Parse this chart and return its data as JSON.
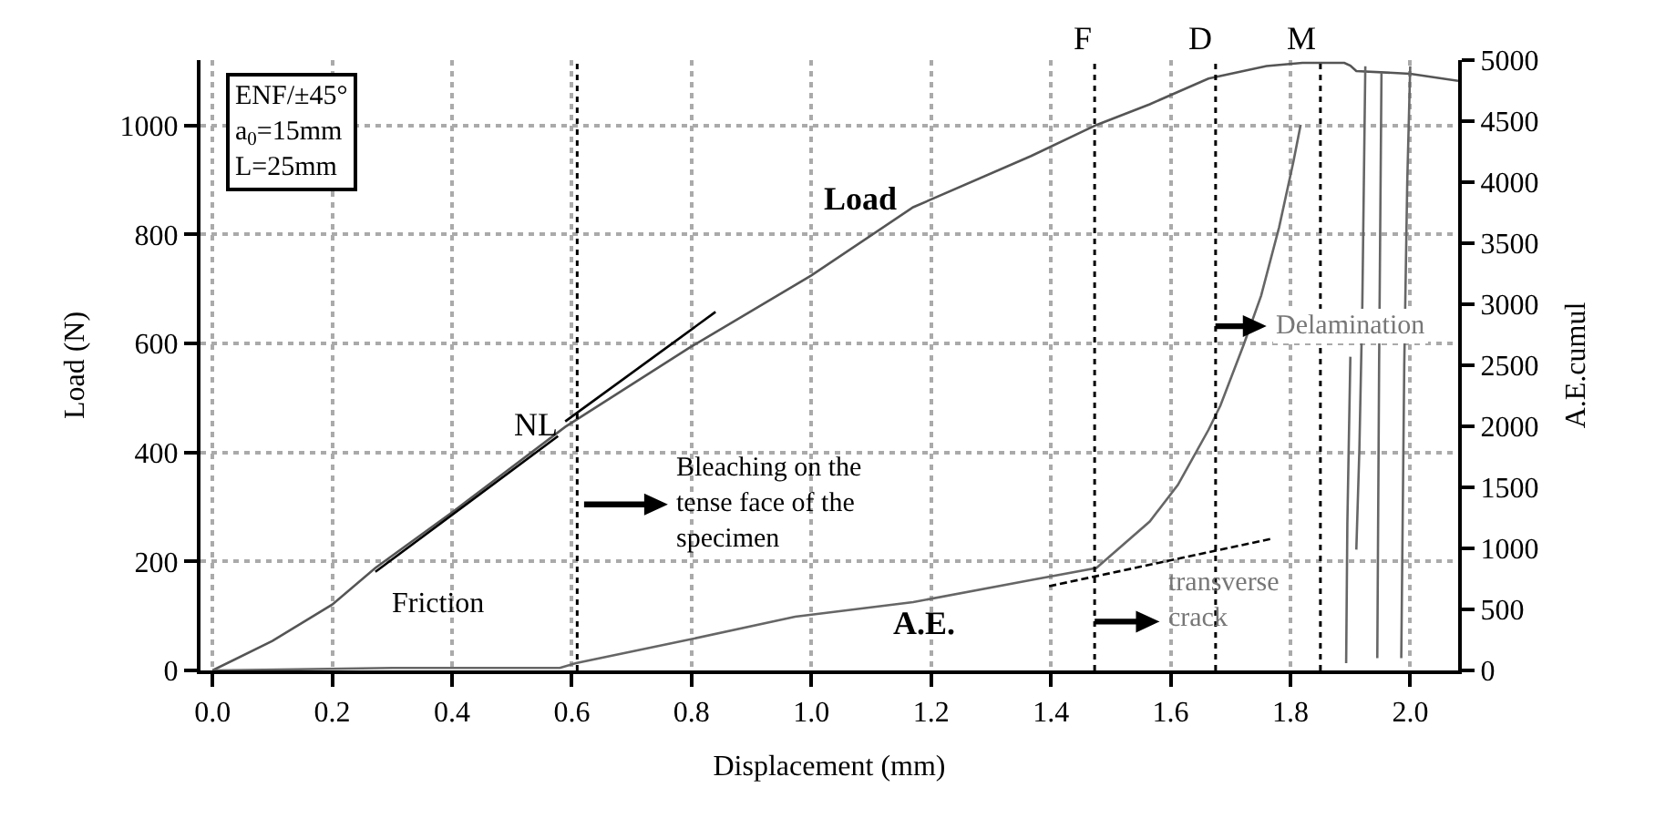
{
  "chart_data": {
    "type": "line",
    "xlabel": "Displacement (mm)",
    "ylabel": "Load (N)",
    "y2label": "A.E.cumul",
    "xlim": [
      -0.02,
      2.08
    ],
    "xticks": [
      {
        "value": 0,
        "label": "0.0"
      },
      {
        "value": 0.2,
        "label": "0.2"
      },
      {
        "value": 0.4,
        "label": "0.4"
      },
      {
        "value": 0.6,
        "label": "0.6"
      },
      {
        "value": 0.8,
        "label": "0.8"
      },
      {
        "value": 1.0,
        "label": "1.0"
      },
      {
        "value": 1.2,
        "label": "1.2"
      },
      {
        "value": 1.4,
        "label": "1.4"
      },
      {
        "value": 1.6,
        "label": "1.6"
      },
      {
        "value": 1.8,
        "label": "1.8"
      },
      {
        "value": 2.0,
        "label": "2.0"
      }
    ],
    "ylim": [
      0,
      1120
    ],
    "yticks": [
      0,
      200,
      400,
      600,
      800,
      1000
    ],
    "y2lim": [
      0,
      5000
    ],
    "y2ticks": [
      0,
      500,
      1000,
      1500,
      2000,
      2500,
      3000,
      3500,
      4000,
      4500,
      5000
    ],
    "grid": true,
    "legend": false,
    "marker": "none",
    "series": [
      {
        "color": "#555555",
        "line_style": "solid",
        "x": [
          0,
          0.1,
          0.2,
          0.272,
          0.4,
          0.589,
          0.796,
          1.0,
          1.17,
          1.367,
          1.476,
          1.565,
          1.663,
          1.76,
          1.82,
          1.89,
          1.9,
          1.91,
          2.0,
          2.08
        ],
        "values": [
          0,
          54,
          121,
          188,
          290,
          447,
          592,
          725,
          850,
          944,
          1001,
          1039,
          1086,
          1109,
          1115,
          1115,
          1110,
          1100,
          1095,
          1082
        ]
      },
      {
        "color": "#000000",
        "line_style": "solid",
        "x": [
          0.272,
          0.577
        ],
        "values": [
          181,
          430
        ]
      },
      {
        "color": "#000000",
        "line_style": "solid",
        "x": [
          0.589,
          0.84
        ],
        "values": [
          457,
          658
        ]
      },
      {
        "color": "#666666",
        "line_style": "solid",
        "axis": "y2",
        "x": [
          0,
          0.3,
          0.58,
          0.607,
          0.784,
          0.973,
          1.17,
          1.367,
          1.476,
          1.565,
          1.612,
          1.663,
          1.683,
          1.722,
          1.751,
          1.781,
          1.805,
          1.817,
          1.85,
          1.893,
          1.895,
          1.9,
          1.905,
          1.91,
          1.915,
          1.92,
          1.925,
          1.935,
          1.945,
          1.948,
          1.952,
          1.97,
          1.985,
          1.99,
          1.995,
          2.0
        ],
        "values": [
          0,
          20,
          20,
          60,
          240,
          440,
          560,
          740,
          840,
          1220,
          1520,
          1970,
          2170,
          2670,
          3070,
          3630,
          4170,
          4470,
          null,
          60,
          1200,
          2570,
          null,
          990,
          1800,
          3000,
          4950,
          null,
          100,
          2500,
          4900,
          null,
          100,
          2500,
          4000,
          4950
        ]
      },
      {
        "color": "#000000",
        "line_style": "dashed",
        "axis": "y2",
        "x": [
          1.397,
          1.77
        ],
        "values": [
          690,
          1080
        ]
      }
    ],
    "ref_lines": [
      {
        "axis": "x",
        "value": 0.609,
        "color": "#000000",
        "line_style": "dotted"
      },
      {
        "axis": "x",
        "value": 1.473,
        "label": "F",
        "color": "#000000",
        "line_style": "dotted"
      },
      {
        "axis": "x",
        "value": 1.675,
        "label": "D",
        "color": "#000000",
        "line_style": "dotted"
      },
      {
        "axis": "x",
        "value": 1.85,
        "label": "M",
        "color": "#000000",
        "line_style": "dotted"
      }
    ],
    "annotations": [
      "ENF/±45°\na$_{0}$=15mm\nL=25mm",
      "Load",
      "NL",
      "Friction",
      "Bleaching on the\ntense face of the\nspecimen",
      "A.E.",
      "transverse\ncrack",
      "Delamination"
    ]
  }
}
